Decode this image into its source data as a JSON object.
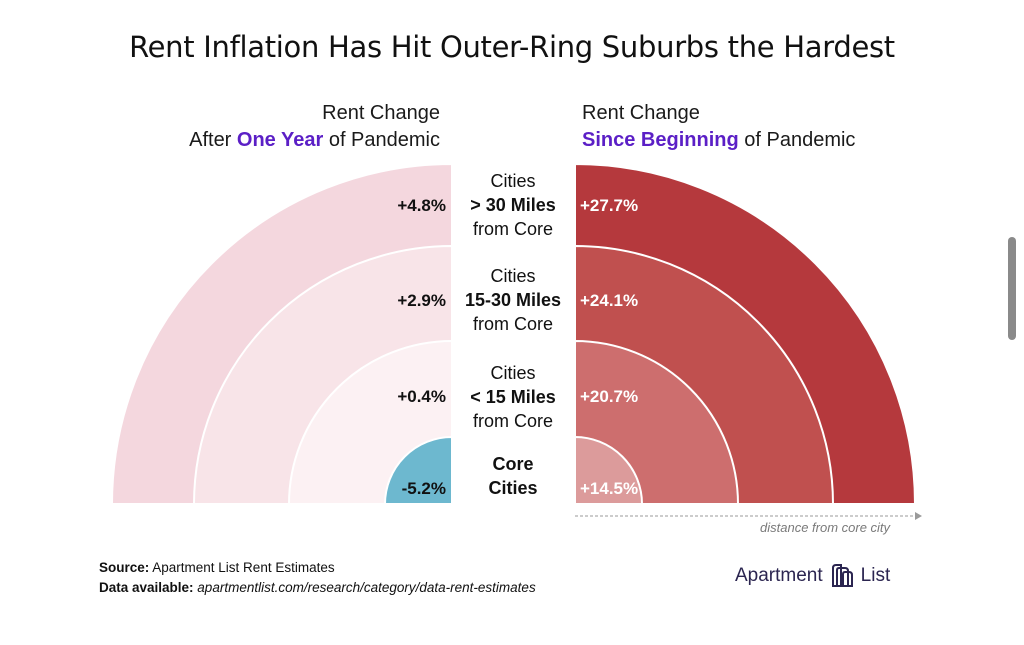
{
  "title": "Rent Inflation Has Hit Outer-Ring Suburbs the Hardest",
  "left_header": {
    "line1": "Rent Change",
    "prefix": "After ",
    "highlight": "One Year",
    "suffix": " of Pandemic"
  },
  "right_header": {
    "line1": "Rent Change",
    "highlight": "Since Beginning",
    "suffix": " of Pandemic"
  },
  "axis_note": "distance from core city",
  "source": {
    "label": "Source:",
    "text": " Apartment List Rent Estimates"
  },
  "data_available": {
    "label": "Data available:",
    "text": " apartmentlist.com/research/category/data-rent-estimates"
  },
  "brand": {
    "word1": "Apartment",
    "word2": "List"
  },
  "colors": {
    "accent": "#5b1fc6",
    "left_ring_outer": "#f4d7de",
    "left_ring_mid": "#f8e4e8",
    "left_ring_inner": "#fcf1f3",
    "left_core_negative": "#6db8cf",
    "right_ring_outer": "#b5393d",
    "right_ring_mid": "#c0504f",
    "right_ring_inner": "#cd6e6e",
    "right_core": "#dc9b9b"
  },
  "chart_data": {
    "type": "mirrored-semicircle-bands",
    "title": "Rent Inflation Has Hit Outer-Ring Suburbs the Hardest",
    "categories": [
      {
        "lines": [
          "Core",
          "Cities"
        ],
        "bold_lines": [
          0,
          1
        ]
      },
      {
        "lines": [
          "Cities",
          "< 15 Miles",
          "from Core"
        ],
        "bold_lines": [
          1
        ]
      },
      {
        "lines": [
          "Cities",
          "15-30 Miles",
          "from Core"
        ],
        "bold_lines": [
          1
        ]
      },
      {
        "lines": [
          "Cities",
          "> 30 Miles",
          "from Core"
        ],
        "bold_lines": [
          1
        ]
      }
    ],
    "series": [
      {
        "name": "Rent Change After One Year of Pandemic",
        "side": "left",
        "values": [
          -5.2,
          0.4,
          2.9,
          4.8
        ],
        "labels": [
          "-5.2%",
          "+0.4%",
          "+2.9%",
          "+4.8%"
        ]
      },
      {
        "name": "Rent Change Since Beginning of Pandemic",
        "side": "right",
        "values": [
          14.5,
          20.7,
          24.1,
          27.7
        ],
        "labels": [
          "+14.5%",
          "+20.7%",
          "+24.1%",
          "+27.7%"
        ]
      }
    ],
    "xlabel": "distance from core city"
  }
}
